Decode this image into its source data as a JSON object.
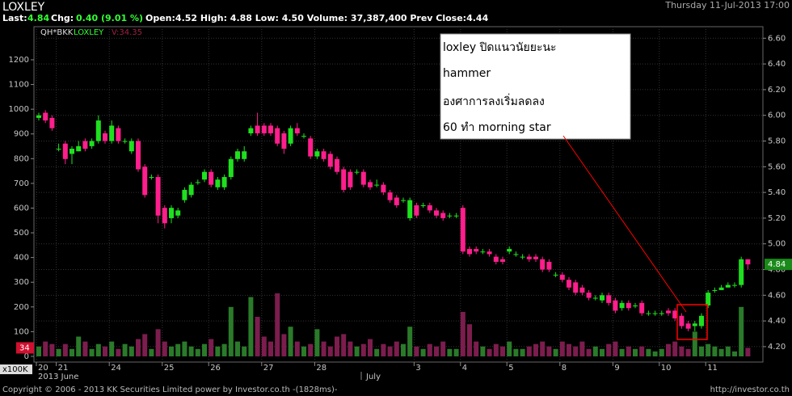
{
  "chart_data": {
    "type": "candlestick",
    "title": "LOXLEY",
    "datetime": "Thursday 11-Jul-2013 17:00",
    "quote": {
      "last_label": "Last:",
      "last": "4.84",
      "chg_label": "Chg:",
      "chg": "0.40 (9.01 %)",
      "rest": "Open:4.52 High: 4.88 Low: 4.50 Volume: 37,387,400 Prev Close:4.44"
    },
    "legend": {
      "source": "QH*BKK",
      "symbol": "LOXLEY",
      "volume": "V:34.35"
    },
    "volume_unit": "x100K",
    "last_price_tag": "4.84",
    "last_volume_tag": "34",
    "month_labels": [
      "2013 June",
      "July"
    ],
    "annotation": [
      "loxley ปิดแนวนัยยะนะ",
      "hammer",
      "องศาการลงเริ่มลดลง",
      "60 ทำ morning star"
    ],
    "footer": "Copyright © 2006 - 2013 KK Securities Limited power by Investor.co.th  -(1828ms)-",
    "footer_url": "http://investor.co.th",
    "up_color": "#1fe01f",
    "down_color": "#ff1e8c",
    "up_volume_color": "#2a7a2a",
    "down_volume_color": "#7c1d4e",
    "grid": true,
    "categories": [
      "20",
      null,
      null,
      "21",
      null,
      null,
      null,
      null,
      null,
      null,
      null,
      "24",
      null,
      null,
      null,
      null,
      null,
      null,
      null,
      "25",
      null,
      null,
      null,
      null,
      null,
      null,
      "26",
      null,
      null,
      null,
      null,
      null,
      null,
      null,
      "27",
      null,
      null,
      null,
      null,
      null,
      null,
      null,
      "28",
      null,
      null,
      null,
      null,
      null,
      null,
      null,
      null,
      null,
      null,
      null,
      null,
      null,
      null,
      "3",
      null,
      null,
      null,
      null,
      null,
      null,
      "4",
      null,
      null,
      null,
      null,
      null,
      null,
      "5",
      null,
      null,
      null,
      null,
      null,
      null,
      null,
      "8",
      null,
      null,
      null,
      null,
      null,
      null,
      null,
      "9",
      null,
      null,
      null,
      null,
      null,
      null,
      "10",
      null,
      null,
      null,
      null,
      null,
      null,
      "11",
      null,
      null,
      null,
      null,
      null,
      null
    ],
    "open": [
      5.98,
      6.02,
      5.98,
      5.74,
      5.78,
      5.7,
      5.72,
      5.8,
      5.76,
      5.8,
      5.86,
      5.8,
      5.9,
      5.8,
      5.72,
      5.8,
      5.6,
      5.52,
      5.52,
      5.28,
      5.2,
      5.22,
      5.34,
      5.38,
      5.48,
      5.5,
      5.56,
      5.44,
      5.44,
      5.52,
      5.66,
      5.66,
      5.86,
      5.92,
      5.92,
      5.92,
      5.9,
      5.86,
      5.78,
      5.9,
      5.84,
      5.82,
      5.68,
      5.72,
      5.7,
      5.66,
      5.58,
      5.56,
      5.56,
      5.56,
      5.48,
      5.46,
      5.46,
      5.4,
      5.36,
      5.34,
      5.2,
      5.3,
      5.3,
      5.3,
      5.26,
      5.24,
      5.22,
      5.22,
      5.28,
      4.96,
      4.96,
      4.94,
      4.94,
      4.9,
      4.88,
      4.94,
      4.92,
      4.9,
      4.9,
      4.9,
      4.88,
      4.86,
      4.76,
      4.76,
      4.72,
      4.7,
      4.66,
      4.62,
      4.58,
      4.56,
      4.6,
      4.56,
      4.5,
      4.54,
      4.52,
      4.54,
      4.46,
      4.46,
      4.46,
      4.48,
      4.48,
      4.44,
      4.38,
      4.36,
      4.36,
      4.52,
      4.64,
      4.64,
      4.66,
      4.68,
      4.68,
      4.88
    ],
    "close": [
      6.0,
      5.96,
      5.9,
      5.74,
      5.66,
      5.74,
      5.76,
      5.74,
      5.8,
      5.96,
      5.8,
      5.92,
      5.8,
      5.8,
      5.8,
      5.58,
      5.38,
      5.52,
      5.22,
      5.16,
      5.28,
      5.26,
      5.42,
      5.46,
      5.48,
      5.56,
      5.46,
      5.5,
      5.52,
      5.66,
      5.72,
      5.72,
      5.9,
      5.86,
      5.86,
      5.86,
      5.78,
      5.74,
      5.9,
      5.86,
      5.84,
      5.68,
      5.72,
      5.66,
      5.6,
      5.56,
      5.42,
      5.44,
      5.56,
      5.46,
      5.44,
      5.46,
      5.4,
      5.34,
      5.3,
      5.34,
      5.34,
      5.22,
      5.3,
      5.26,
      5.22,
      5.2,
      5.22,
      5.22,
      4.94,
      4.92,
      4.94,
      4.94,
      4.92,
      4.86,
      4.86,
      4.96,
      4.92,
      4.9,
      4.88,
      4.88,
      4.8,
      4.8,
      4.76,
      4.72,
      4.66,
      4.62,
      4.62,
      4.58,
      4.58,
      4.6,
      4.54,
      4.48,
      4.54,
      4.5,
      4.52,
      4.46,
      4.46,
      4.46,
      4.46,
      4.46,
      4.42,
      4.36,
      4.34,
      4.38,
      4.44,
      4.62,
      4.64,
      4.66,
      4.68,
      4.68,
      4.88,
      4.84
    ],
    "high": [
      6.02,
      6.04,
      6.0,
      5.78,
      5.8,
      5.76,
      5.8,
      5.82,
      5.82,
      6.0,
      5.88,
      5.96,
      5.92,
      5.82,
      5.82,
      5.82,
      5.62,
      5.54,
      5.54,
      5.3,
      5.3,
      5.28,
      5.44,
      5.48,
      5.5,
      5.58,
      5.58,
      5.52,
      5.54,
      5.68,
      5.74,
      5.76,
      5.92,
      6.02,
      5.94,
      5.94,
      5.92,
      5.88,
      5.92,
      5.94,
      5.86,
      5.84,
      5.74,
      5.74,
      5.72,
      5.68,
      5.6,
      5.58,
      5.58,
      5.58,
      5.5,
      5.5,
      5.48,
      5.42,
      5.38,
      5.36,
      5.36,
      5.32,
      5.32,
      5.32,
      5.28,
      5.26,
      5.24,
      5.24,
      5.3,
      4.98,
      4.98,
      4.96,
      4.96,
      4.92,
      4.9,
      4.98,
      4.94,
      4.92,
      4.92,
      4.92,
      4.9,
      4.88,
      4.78,
      4.78,
      4.74,
      4.72,
      4.68,
      4.64,
      4.6,
      4.62,
      4.62,
      4.58,
      4.56,
      4.56,
      4.54,
      4.56,
      4.48,
      4.48,
      4.48,
      4.5,
      4.5,
      4.46,
      4.4,
      4.4,
      4.46,
      4.64,
      4.66,
      4.68,
      4.7,
      4.7,
      4.9,
      4.88
    ],
    "low": [
      5.96,
      5.94,
      5.88,
      5.72,
      5.62,
      5.62,
      5.72,
      5.72,
      5.74,
      5.78,
      5.78,
      5.78,
      5.78,
      5.78,
      5.7,
      5.56,
      5.36,
      5.5,
      5.16,
      5.12,
      5.16,
      5.2,
      5.32,
      5.36,
      5.46,
      5.48,
      5.44,
      5.42,
      5.42,
      5.5,
      5.64,
      5.64,
      5.84,
      5.84,
      5.84,
      5.84,
      5.76,
      5.7,
      5.76,
      5.84,
      5.82,
      5.66,
      5.66,
      5.64,
      5.58,
      5.54,
      5.4,
      5.42,
      5.54,
      5.44,
      5.42,
      5.44,
      5.38,
      5.32,
      5.28,
      5.32,
      5.18,
      5.2,
      5.28,
      5.24,
      5.2,
      5.18,
      5.2,
      5.2,
      4.92,
      4.9,
      4.92,
      4.92,
      4.9,
      4.84,
      4.84,
      4.92,
      4.9,
      4.88,
      4.86,
      4.86,
      4.78,
      4.78,
      4.74,
      4.7,
      4.64,
      4.6,
      4.6,
      4.56,
      4.56,
      4.54,
      4.52,
      4.46,
      4.48,
      4.48,
      4.5,
      4.44,
      4.44,
      4.44,
      4.44,
      4.44,
      4.4,
      4.34,
      4.32,
      4.32,
      4.34,
      4.5,
      4.62,
      4.64,
      4.66,
      4.66,
      4.66,
      4.8
    ],
    "volume": [
      40,
      60,
      50,
      30,
      50,
      30,
      80,
      60,
      30,
      50,
      40,
      60,
      30,
      50,
      40,
      70,
      90,
      30,
      110,
      60,
      40,
      50,
      60,
      40,
      30,
      50,
      70,
      40,
      50,
      200,
      60,
      40,
      240,
      160,
      80,
      60,
      255,
      90,
      120,
      60,
      40,
      50,
      110,
      60,
      40,
      80,
      90,
      60,
      40,
      50,
      70,
      30,
      50,
      40,
      60,
      50,
      120,
      40,
      30,
      50,
      40,
      60,
      30,
      30,
      180,
      130,
      60,
      40,
      30,
      50,
      40,
      60,
      30,
      30,
      40,
      50,
      60,
      40,
      30,
      60,
      50,
      40,
      60,
      30,
      40,
      30,
      50,
      60,
      30,
      40,
      30,
      40,
      30,
      20,
      30,
      50,
      60,
      40,
      30,
      100,
      40,
      50,
      40,
      30,
      40,
      20,
      200,
      34.35
    ],
    "ylim": [
      4.08,
      6.69
    ],
    "yticks": [
      {
        "value": 4.2,
        "label": "4.20"
      },
      {
        "value": 4.4,
        "label": "4.40"
      },
      {
        "value": 4.6,
        "label": "4.60"
      },
      {
        "value": 4.8,
        "label": "4.80"
      },
      {
        "value": 5.0,
        "label": "5.00"
      },
      {
        "value": 5.2,
        "label": "5.20"
      },
      {
        "value": 5.4,
        "label": "5.40"
      },
      {
        "value": 5.6,
        "label": "5.60"
      },
      {
        "value": 5.8,
        "label": "5.80"
      },
      {
        "value": 6.0,
        "label": "6.00"
      },
      {
        "value": 6.2,
        "label": "6.20"
      },
      {
        "value": 6.4,
        "label": "6.40"
      },
      {
        "value": 6.6,
        "label": "6.60"
      }
    ],
    "y2lim": [
      -23,
      1334
    ],
    "y2ticks": [
      0,
      100,
      200,
      300,
      400,
      500,
      600,
      700,
      800,
      900,
      1000,
      1100,
      1200
    ]
  }
}
